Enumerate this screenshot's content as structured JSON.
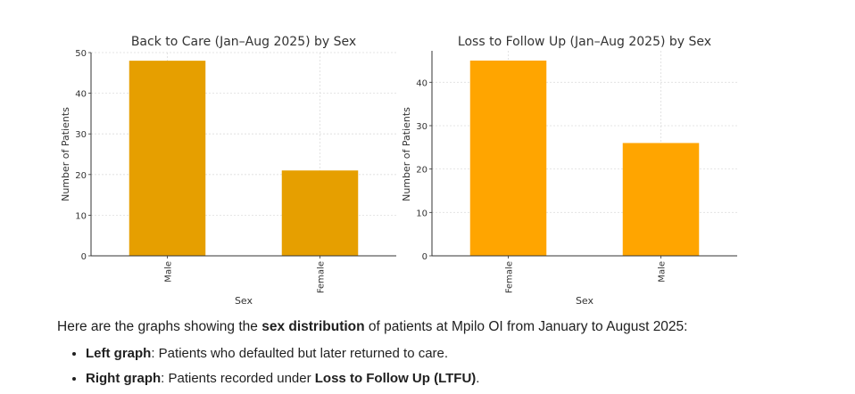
{
  "chart_data": [
    {
      "type": "bar",
      "title": "Back to Care (Jan–Aug 2025) by Sex",
      "xlabel": "Sex",
      "ylabel": "Number of Patients",
      "categories": [
        "Male",
        "Female"
      ],
      "values": [
        48,
        21
      ],
      "ylim": [
        0,
        50
      ],
      "yticks": [
        0,
        10,
        20,
        30,
        40,
        50
      ],
      "grid": true,
      "legend": "none",
      "bar_color": "#E69F00"
    },
    {
      "type": "bar",
      "title": "Loss to Follow Up (Jan–Aug 2025) by Sex",
      "xlabel": "Sex",
      "ylabel": "Number of Patients",
      "categories": [
        "Female",
        "Male"
      ],
      "values": [
        45,
        26
      ],
      "ylim": [
        0,
        47.25
      ],
      "yticks": [
        0,
        10,
        20,
        30,
        40
      ],
      "grid": true,
      "legend": "none",
      "bar_color": "#FFA500"
    }
  ],
  "text": {
    "intro_before": "Here are the graphs showing the ",
    "intro_bold": "sex distribution",
    "intro_after": " of patients at Mpilo OI from January to August 2025:",
    "bullets": [
      {
        "bold": "Left graph",
        "rest": ": Patients who defaulted but later returned to care.",
        "bold2": "",
        "rest2": ""
      },
      {
        "bold": "Right graph",
        "rest": ": Patients recorded under ",
        "bold2": "Loss to Follow Up (LTFU)",
        "rest2": "."
      }
    ]
  }
}
